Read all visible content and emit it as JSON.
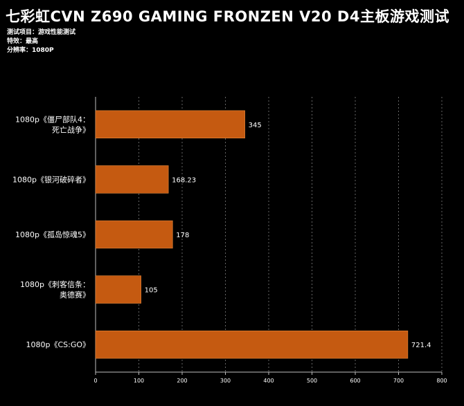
{
  "header": {
    "title": "七彩虹CVN Z690 GAMING FRONZEN V20 D4主板游戏测试",
    "meta": [
      "测试项目：游戏性能测试",
      "特效：最高",
      "分辨率：1080P"
    ]
  },
  "colors": {
    "background": "#000000",
    "bar": "#c55a11",
    "bar_border": "#e98a3c",
    "text": "#ffffff",
    "grid": "#7f7f7f"
  },
  "chart_data": {
    "type": "bar",
    "orientation": "horizontal",
    "title": "七彩虹CVN Z690 GAMING FRONZEN V20 D4主板游戏测试",
    "categories": [
      [
        "1080p《僵尸部队4：",
        "死亡战争》"
      ],
      [
        "1080p《银河破碎者》"
      ],
      [
        "1080p《孤岛惊魂5》"
      ],
      [
        "1080p《刺客信条：",
        "奥德赛》"
      ],
      [
        "1080p《CS:GO》"
      ]
    ],
    "values": [
      345,
      168.23,
      178,
      105,
      721.4
    ],
    "value_labels": [
      "345",
      "168.23",
      "178",
      "105",
      "721.4"
    ],
    "xlim": [
      0,
      800
    ],
    "xticks": [
      0,
      100,
      200,
      300,
      400,
      500,
      600,
      700,
      800
    ],
    "grid": true,
    "legend": "none"
  }
}
